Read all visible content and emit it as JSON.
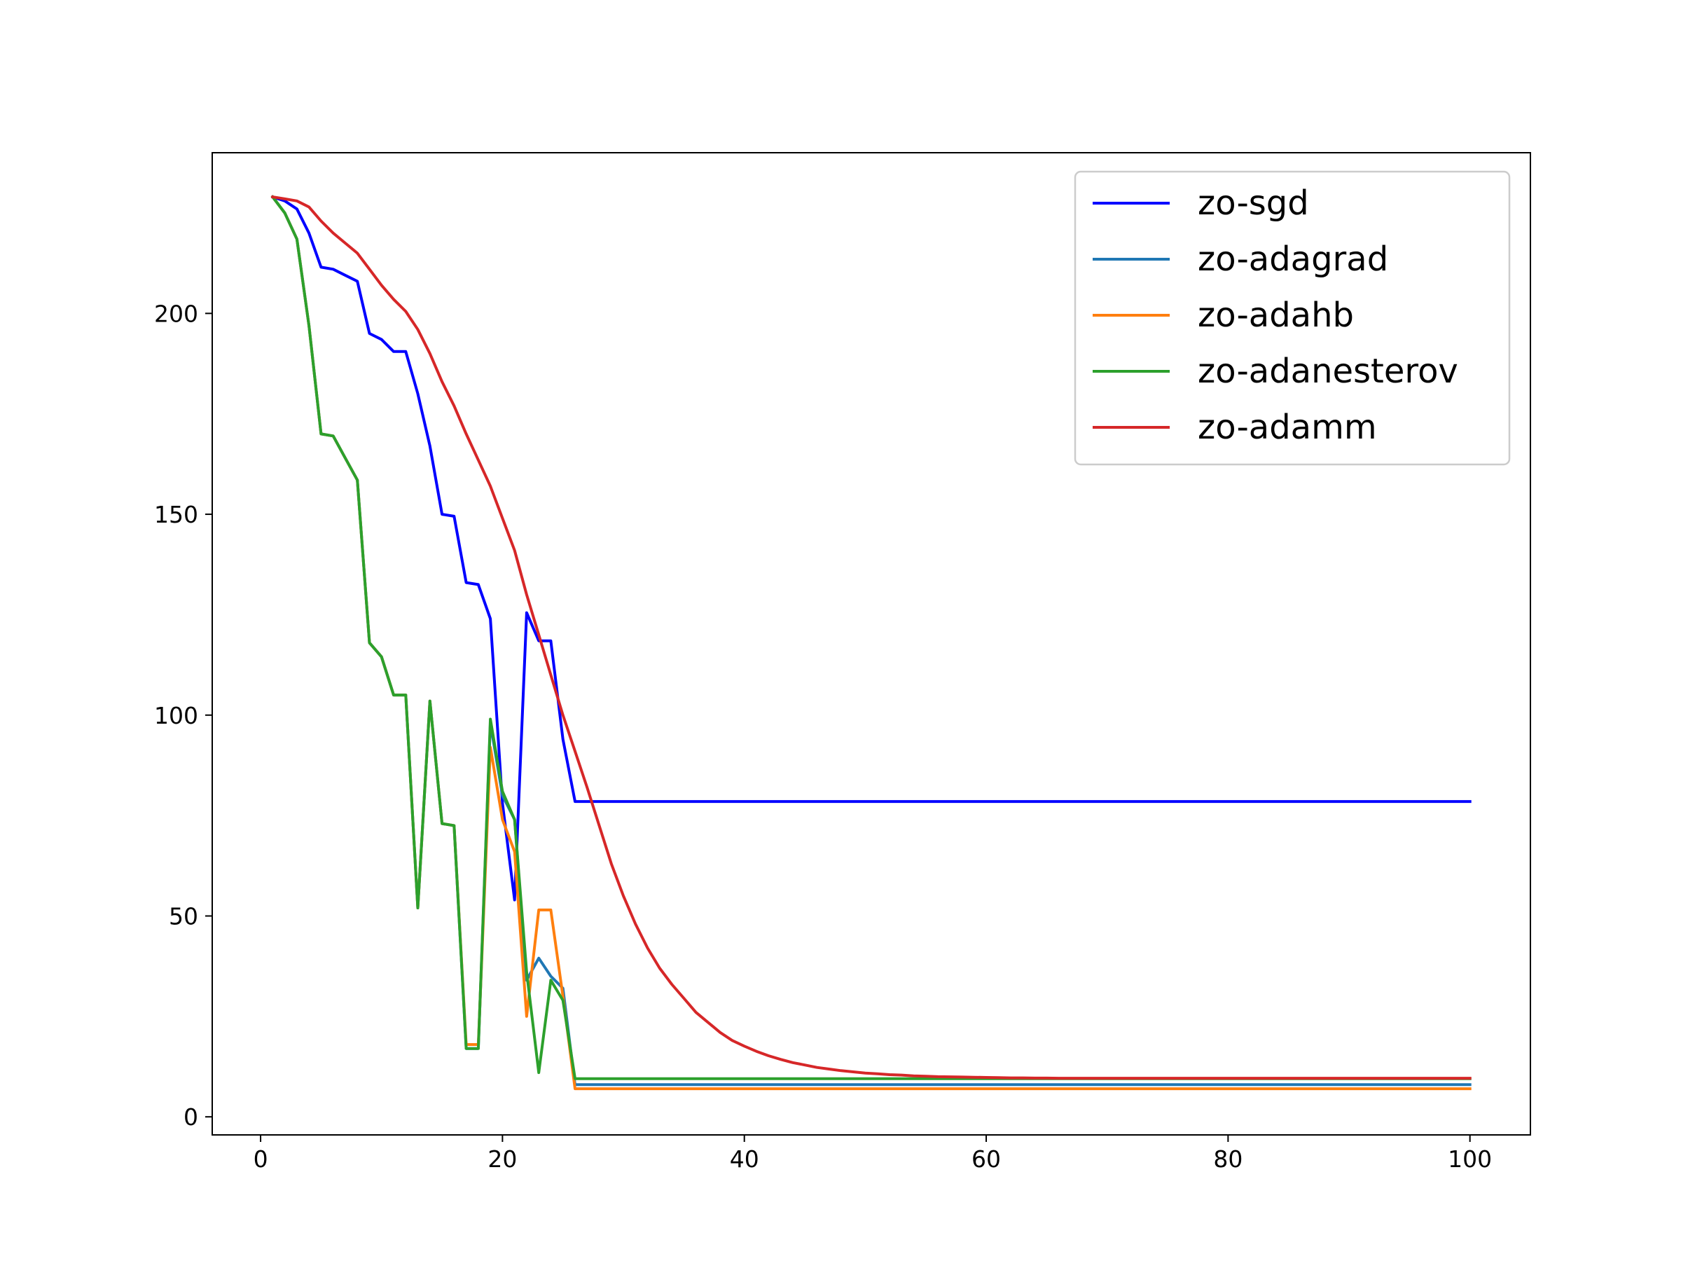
{
  "chart_data": {
    "type": "line",
    "title": "",
    "xlabel": "",
    "ylabel": "",
    "xlim": [
      -4,
      105
    ],
    "ylim": [
      -4.5,
      240
    ],
    "x_ticks": [
      0,
      20,
      40,
      60,
      80,
      100
    ],
    "y_ticks": [
      0,
      50,
      100,
      150,
      200
    ],
    "grid": false,
    "legend_position": "top-right",
    "x": [
      1,
      2,
      3,
      4,
      5,
      6,
      7,
      8,
      9,
      10,
      11,
      12,
      13,
      14,
      15,
      16,
      17,
      18,
      19,
      20,
      21,
      22,
      23,
      24,
      25,
      26,
      27,
      28,
      29,
      30,
      31,
      32,
      33,
      34,
      35,
      36,
      37,
      38,
      39,
      40,
      41,
      42,
      43,
      44,
      45,
      46,
      47,
      48,
      49,
      50,
      51,
      52,
      53,
      54,
      55,
      56,
      57,
      58,
      59,
      60,
      61,
      62,
      63,
      64,
      65,
      66,
      67,
      68,
      69,
      70,
      71,
      72,
      73,
      74,
      75,
      76,
      77,
      78,
      79,
      80,
      81,
      82,
      83,
      84,
      85,
      86,
      87,
      88,
      89,
      90,
      91,
      92,
      93,
      94,
      95,
      96,
      97,
      98,
      99,
      100
    ],
    "series": [
      {
        "name": "zo-sgd",
        "color": "#0000ff",
        "values": [
          229,
          228,
          226,
          220,
          211.5,
          211,
          209.5,
          208,
          195,
          193.5,
          190.5,
          190.5,
          180,
          167,
          150,
          149.5,
          133,
          132.5,
          124,
          78,
          54,
          125.5,
          118.5,
          118.5,
          94,
          78.5,
          78.5,
          78.5,
          78.5,
          78.5,
          78.5,
          78.5,
          78.5,
          78.5,
          78.5,
          78.5,
          78.5,
          78.5,
          78.5,
          78.5,
          78.5,
          78.5,
          78.5,
          78.5,
          78.5,
          78.5,
          78.5,
          78.5,
          78.5,
          78.5,
          78.5,
          78.5,
          78.5,
          78.5,
          78.5,
          78.5,
          78.5,
          78.5,
          78.5,
          78.5,
          78.5,
          78.5,
          78.5,
          78.5,
          78.5,
          78.5,
          78.5,
          78.5,
          78.5,
          78.5,
          78.5,
          78.5,
          78.5,
          78.5,
          78.5,
          78.5,
          78.5,
          78.5,
          78.5,
          78.5,
          78.5,
          78.5,
          78.5,
          78.5,
          78.5,
          78.5,
          78.5,
          78.5,
          78.5,
          78.5,
          78.5,
          78.5,
          78.5,
          78.5,
          78.5,
          78.5,
          78.5,
          78.5,
          78.5,
          78.5
        ]
      },
      {
        "name": "zo-adagrad",
        "color": "#1f77b4",
        "values": [
          229,
          225,
          218.5,
          197,
          170,
          169.5,
          164,
          158.5,
          118,
          114.5,
          105,
          105,
          52,
          103.5,
          73,
          72.5,
          17,
          17,
          98,
          80,
          74,
          34,
          39.5,
          35,
          32,
          8,
          8,
          8,
          8,
          8,
          8,
          8,
          8,
          8,
          8,
          8,
          8,
          8,
          8,
          8,
          8,
          8,
          8,
          8,
          8,
          8,
          8,
          8,
          8,
          8,
          8,
          8,
          8,
          8,
          8,
          8,
          8,
          8,
          8,
          8,
          8,
          8,
          8,
          8,
          8,
          8,
          8,
          8,
          8,
          8,
          8,
          8,
          8,
          8,
          8,
          8,
          8,
          8,
          8,
          8,
          8,
          8,
          8,
          8,
          8,
          8,
          8,
          8,
          8,
          8,
          8,
          8,
          8,
          8,
          8,
          8,
          8,
          8,
          8,
          8
        ]
      },
      {
        "name": "zo-adahb",
        "color": "#ff7f0e",
        "values": [
          229,
          225,
          218.5,
          197,
          170,
          169.5,
          164,
          158.5,
          118,
          114.5,
          105,
          105,
          52,
          103.5,
          73,
          72.5,
          18,
          18,
          92,
          74,
          66,
          25,
          51.5,
          51.5,
          30,
          7,
          7,
          7,
          7,
          7,
          7,
          7,
          7,
          7,
          7,
          7,
          7,
          7,
          7,
          7,
          7,
          7,
          7,
          7,
          7,
          7,
          7,
          7,
          7,
          7,
          7,
          7,
          7,
          7,
          7,
          7,
          7,
          7,
          7,
          7,
          7,
          7,
          7,
          7,
          7,
          7,
          7,
          7,
          7,
          7,
          7,
          7,
          7,
          7,
          7,
          7,
          7,
          7,
          7,
          7,
          7,
          7,
          7,
          7,
          7,
          7,
          7,
          7,
          7,
          7,
          7,
          7,
          7,
          7,
          7,
          7,
          7,
          7,
          7,
          7
        ]
      },
      {
        "name": "zo-adanesterov",
        "color": "#2ca02c",
        "values": [
          229,
          225,
          218.5,
          197,
          170,
          169.5,
          164,
          158.5,
          118,
          114.5,
          105,
          105,
          52,
          103.5,
          73,
          72.5,
          17,
          17,
          99,
          81,
          74,
          36,
          11,
          34,
          29,
          9.5,
          9.5,
          9.5,
          9.5,
          9.5,
          9.5,
          9.5,
          9.5,
          9.5,
          9.5,
          9.5,
          9.5,
          9.5,
          9.5,
          9.5,
          9.5,
          9.5,
          9.5,
          9.5,
          9.5,
          9.5,
          9.5,
          9.5,
          9.5,
          9.5,
          9.5,
          9.5,
          9.5,
          9.5,
          9.5,
          9.5,
          9.5,
          9.5,
          9.5,
          9.5,
          9.5,
          9.5,
          9.5,
          9.5,
          9.5,
          9.5,
          9.5,
          9.5,
          9.5,
          9.5,
          9.5,
          9.5,
          9.5,
          9.5,
          9.5,
          9.5,
          9.5,
          9.5,
          9.5,
          9.5,
          9.5,
          9.5,
          9.5,
          9.5,
          9.5,
          9.5,
          9.5,
          9.5,
          9.5,
          9.5,
          9.5,
          9.5,
          9.5,
          9.5,
          9.5,
          9.5,
          9.5,
          9.5,
          9.5,
          9.5
        ]
      },
      {
        "name": "zo-adamm",
        "color": "#d62728",
        "values": [
          229,
          228.5,
          228,
          226.5,
          223,
          220,
          217.5,
          215,
          211,
          207,
          203.5,
          200.5,
          196,
          190,
          183,
          177,
          170,
          163.5,
          157,
          149,
          141,
          130,
          120,
          110,
          100,
          91,
          82,
          72.5,
          63,
          55,
          48,
          42,
          37,
          33,
          29.5,
          26,
          23.5,
          21,
          19,
          17.6,
          16.3,
          15.2,
          14.3,
          13.5,
          12.9,
          12.3,
          11.9,
          11.5,
          11.2,
          10.9,
          10.7,
          10.5,
          10.4,
          10.2,
          10.1,
          10,
          9.95,
          9.9,
          9.85,
          9.8,
          9.75,
          9.7,
          9.7,
          9.65,
          9.65,
          9.6,
          9.6,
          9.6,
          9.6,
          9.6,
          9.6,
          9.6,
          9.6,
          9.6,
          9.6,
          9.6,
          9.6,
          9.6,
          9.6,
          9.6,
          9.6,
          9.6,
          9.6,
          9.6,
          9.6,
          9.6,
          9.6,
          9.6,
          9.6,
          9.6,
          9.6,
          9.6,
          9.6,
          9.6,
          9.6,
          9.6,
          9.6,
          9.6,
          9.6,
          9.6
        ]
      }
    ]
  }
}
